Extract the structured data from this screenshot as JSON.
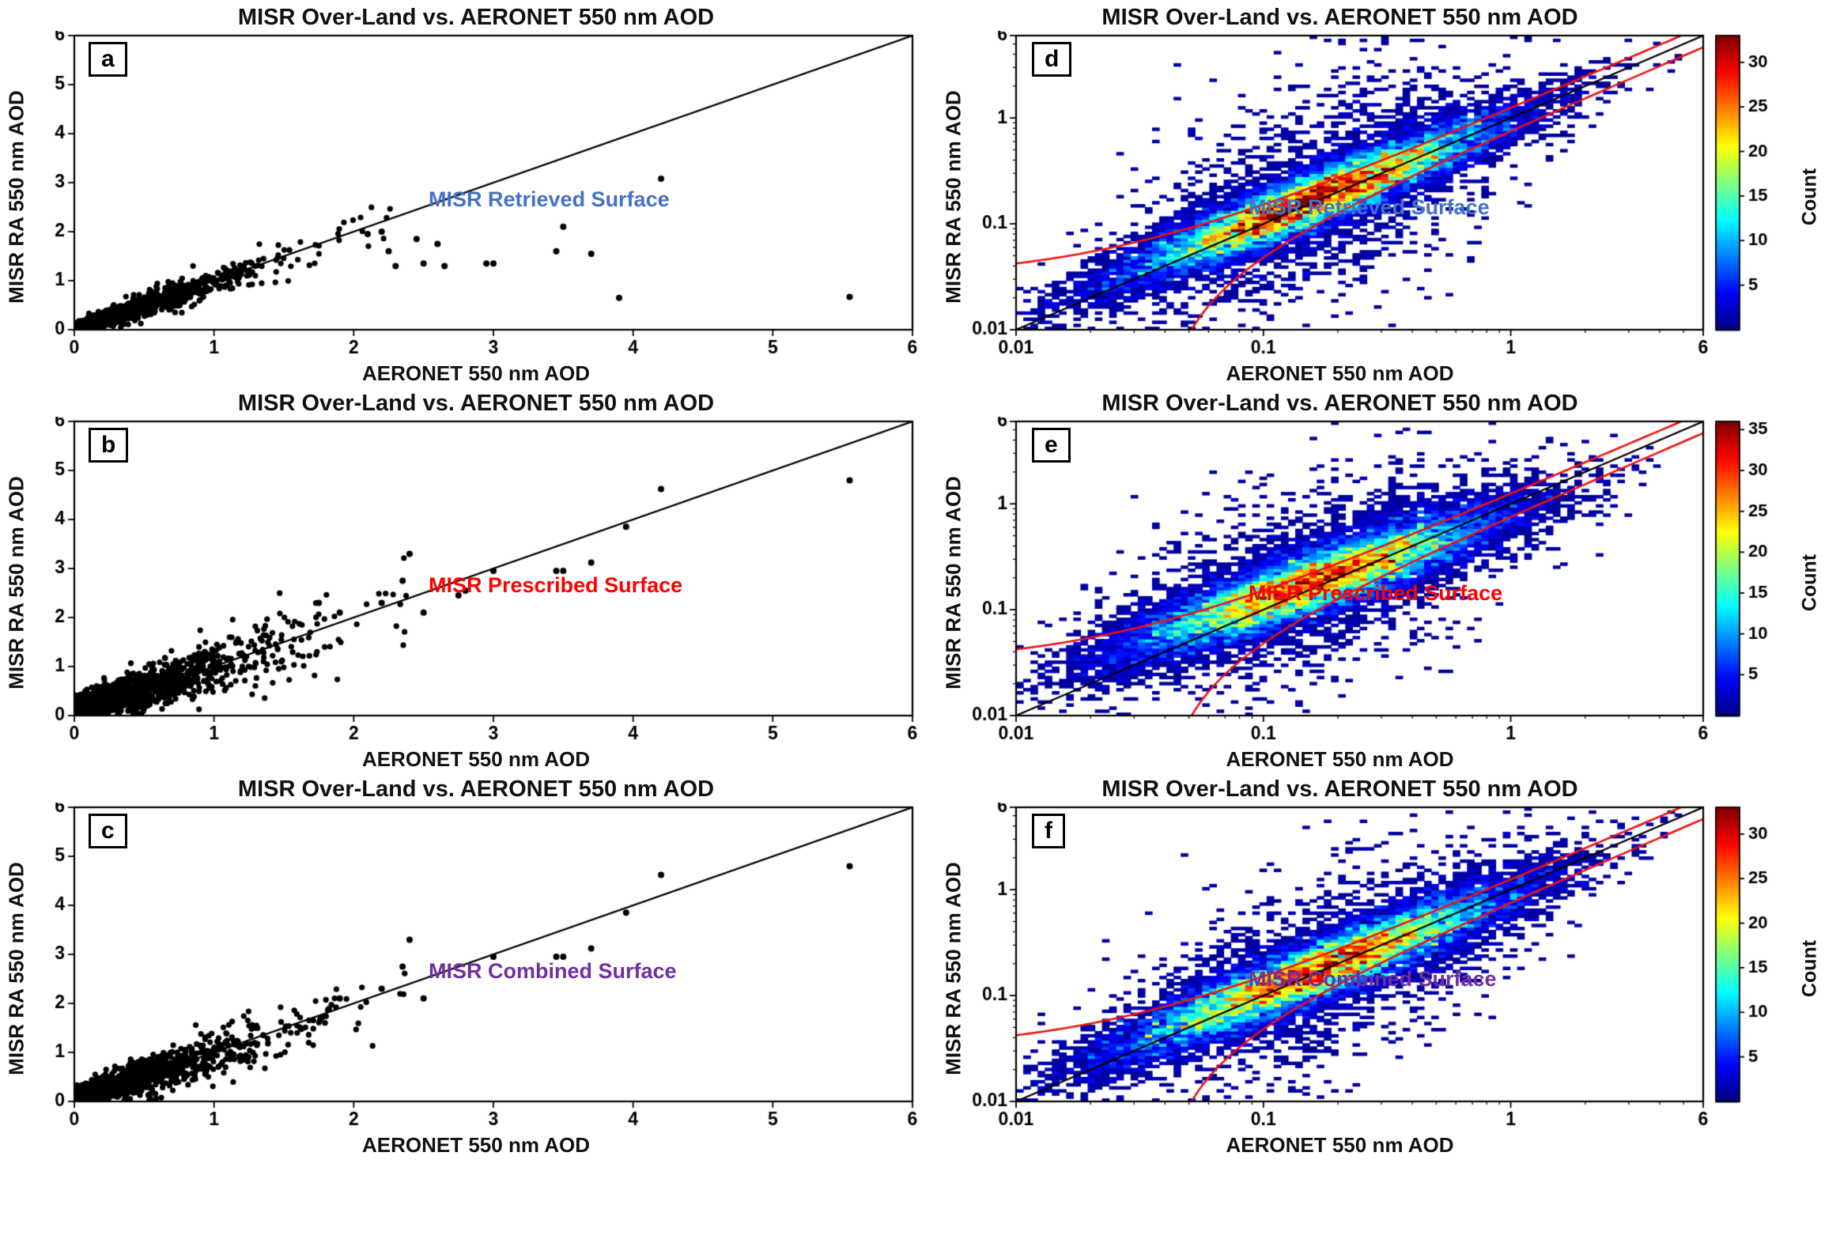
{
  "figure": {
    "description": "Six-panel comparison of MISR Research Aerosol retrieval vs AERONET AOD",
    "accent_colors": {
      "retrieved_blue": "#4472C4",
      "prescribed_red": "#FF0000",
      "combined_purple": "#7030A0",
      "envelope_red": "#EE1111",
      "line_black": "#000000"
    }
  },
  "chart_data": [
    {
      "panel_label": "a",
      "type": "scatter",
      "title": "MISR Over-Land vs. AERONET 550 nm AOD",
      "xlabel": "AERONET 550 nm AOD",
      "ylabel": "MISR RA 550 nm AOD",
      "xlim": [
        0,
        6
      ],
      "ylim": [
        0,
        6
      ],
      "xticks": [
        0,
        1,
        2,
        3,
        4,
        5,
        6
      ],
      "yticks": [
        0,
        1,
        2,
        3,
        4,
        5,
        6
      ],
      "one_to_one_line": true,
      "annotation": {
        "text": "MISR Retrieved Surface",
        "color": "#4472C4"
      },
      "cloud": {
        "n": 1400,
        "seed": 101,
        "x_mean": 0.38,
        "x_max": 2.35,
        "slope": 0.95,
        "intercept": 0.02,
        "noise_base": 0.05,
        "noise_slope": 0.12
      },
      "outliers": [
        [
          2.1,
          1.95
        ],
        [
          2.2,
          2.0
        ],
        [
          2.25,
          1.6
        ],
        [
          2.3,
          1.3
        ],
        [
          2.45,
          1.85
        ],
        [
          2.5,
          1.35
        ],
        [
          2.6,
          1.75
        ],
        [
          2.65,
          1.3
        ],
        [
          2.95,
          1.35
        ],
        [
          3.0,
          1.35
        ],
        [
          3.45,
          1.6
        ],
        [
          3.5,
          2.1
        ],
        [
          3.7,
          1.55
        ],
        [
          3.9,
          0.65
        ],
        [
          4.2,
          3.08
        ],
        [
          5.55,
          0.67
        ]
      ]
    },
    {
      "panel_label": "b",
      "type": "scatter",
      "title": "MISR Over-Land vs. AERONET 550 nm AOD",
      "xlabel": "AERONET 550 nm AOD",
      "ylabel": "MISR RA 550 nm AOD",
      "xlim": [
        0,
        6
      ],
      "ylim": [
        0,
        6
      ],
      "xticks": [
        0,
        1,
        2,
        3,
        4,
        5,
        6
      ],
      "yticks": [
        0,
        1,
        2,
        3,
        4,
        5,
        6
      ],
      "one_to_one_line": true,
      "annotation": {
        "text": "MISR Prescribed Surface",
        "color": "#FF0000"
      },
      "cloud": {
        "n": 1600,
        "seed": 202,
        "x_mean": 0.45,
        "x_max": 2.45,
        "slope": 0.85,
        "intercept": 0.12,
        "noise_base": 0.12,
        "noise_slope": 0.15
      },
      "outliers": [
        [
          5.55,
          4.8
        ],
        [
          4.2,
          4.62
        ],
        [
          3.95,
          3.85
        ],
        [
          3.7,
          3.12
        ],
        [
          3.5,
          2.95
        ],
        [
          3.45,
          2.95
        ],
        [
          3.0,
          2.95
        ],
        [
          2.8,
          2.55
        ],
        [
          2.75,
          2.45
        ],
        [
          2.4,
          3.3
        ],
        [
          2.35,
          2.75
        ],
        [
          2.2,
          2.3
        ],
        [
          2.5,
          2.1
        ],
        [
          1.9,
          2.1
        ],
        [
          1.75,
          2.3
        ]
      ]
    },
    {
      "panel_label": "c",
      "type": "scatter",
      "title": "MISR Over-Land vs. AERONET 550 nm AOD",
      "xlabel": "AERONET 550 nm AOD",
      "ylabel": "MISR RA 550 nm AOD",
      "xlim": [
        0,
        6
      ],
      "ylim": [
        0,
        6
      ],
      "xticks": [
        0,
        1,
        2,
        3,
        4,
        5,
        6
      ],
      "yticks": [
        0,
        1,
        2,
        3,
        4,
        5,
        6
      ],
      "one_to_one_line": true,
      "annotation": {
        "text": "MISR Combined Surface",
        "color": "#7030A0"
      },
      "cloud": {
        "n": 1500,
        "seed": 303,
        "x_mean": 0.42,
        "x_max": 2.45,
        "slope": 0.9,
        "intercept": 0.06,
        "noise_base": 0.09,
        "noise_slope": 0.14
      },
      "outliers": [
        [
          5.55,
          4.8
        ],
        [
          4.2,
          4.62
        ],
        [
          3.95,
          3.85
        ],
        [
          3.7,
          3.12
        ],
        [
          3.5,
          2.95
        ],
        [
          3.45,
          2.95
        ],
        [
          3.0,
          2.95
        ],
        [
          2.4,
          3.3
        ],
        [
          2.35,
          2.75
        ],
        [
          2.2,
          2.3
        ],
        [
          2.5,
          2.1
        ],
        [
          1.9,
          2.1
        ]
      ]
    },
    {
      "panel_label": "d",
      "type": "heatmap_loglog",
      "title": "MISR Over-Land vs. AERONET 550 nm AOD",
      "xlabel": "AERONET 550 nm AOD",
      "ylabel": "MISR RA 550 nm AOD",
      "xlim": [
        0.01,
        6
      ],
      "ylim": [
        0.01,
        6
      ],
      "log_ticks": [
        0.01,
        0.1,
        1,
        6
      ],
      "log_tick_labels": [
        "0.01",
        "0.1",
        "1",
        "6"
      ],
      "one_to_one_line": true,
      "annotation": {
        "text": "MISR Retrieved Surface",
        "color": "#4472C4"
      },
      "colorbar": {
        "label": "Count",
        "max": 33,
        "ticks": [
          5,
          10,
          15,
          20,
          25,
          30
        ]
      },
      "density": {
        "n": 15000,
        "seed": 404,
        "bins": 96,
        "logx_mean": -0.8,
        "logx_sd": 0.4,
        "slope": 0.93,
        "intercept": -0.02,
        "logy_sd": 0.14,
        "broad_frac": 0.12,
        "broad_sd": 0.5
      },
      "envelope": {
        "color": "#EE1111",
        "absolute": 0.03,
        "relative": 0.22
      }
    },
    {
      "panel_label": "e",
      "type": "heatmap_loglog",
      "title": "MISR Over-Land vs. AERONET 550 nm AOD",
      "xlabel": "AERONET 550 nm AOD",
      "ylabel": "MISR RA 550 nm AOD",
      "xlim": [
        0.01,
        6
      ],
      "ylim": [
        0.01,
        6
      ],
      "log_ticks": [
        0.01,
        0.1,
        1,
        6
      ],
      "log_tick_labels": [
        "0.01",
        "0.1",
        "1",
        "6"
      ],
      "one_to_one_line": true,
      "annotation": {
        "text": "MISR Prescribed Surface",
        "color": "#FF0000"
      },
      "colorbar": {
        "label": "Count",
        "max": 36,
        "ticks": [
          5,
          10,
          15,
          20,
          25,
          30,
          35
        ]
      },
      "density": {
        "n": 16000,
        "seed": 505,
        "bins": 96,
        "logx_mean": -0.8,
        "logx_sd": 0.4,
        "slope": 0.8,
        "intercept": -0.1,
        "logy_sd": 0.16,
        "broad_frac": 0.12,
        "broad_sd": 0.45
      },
      "envelope": {
        "color": "#EE1111",
        "absolute": 0.03,
        "relative": 0.22
      }
    },
    {
      "panel_label": "f",
      "type": "heatmap_loglog",
      "title": "MISR Over-Land vs. AERONET 550 nm AOD",
      "xlabel": "AERONET 550 nm AOD",
      "ylabel": "MISR RA 550 nm AOD",
      "xlim": [
        0.01,
        6
      ],
      "ylim": [
        0.01,
        6
      ],
      "log_ticks": [
        0.01,
        0.1,
        1,
        6
      ],
      "log_tick_labels": [
        "0.01",
        "0.1",
        "1",
        "6"
      ],
      "one_to_one_line": true,
      "annotation": {
        "text": "MISR Combined Surface",
        "color": "#7030A0"
      },
      "colorbar": {
        "label": "Count",
        "max": 33,
        "ticks": [
          5,
          10,
          15,
          20,
          25,
          30
        ]
      },
      "density": {
        "n": 15000,
        "seed": 606,
        "bins": 96,
        "logx_mean": -0.78,
        "logx_sd": 0.42,
        "slope": 0.92,
        "intercept": -0.04,
        "logy_sd": 0.15,
        "broad_frac": 0.12,
        "broad_sd": 0.45
      },
      "envelope": {
        "color": "#EE1111",
        "absolute": 0.03,
        "relative": 0.22
      }
    }
  ]
}
